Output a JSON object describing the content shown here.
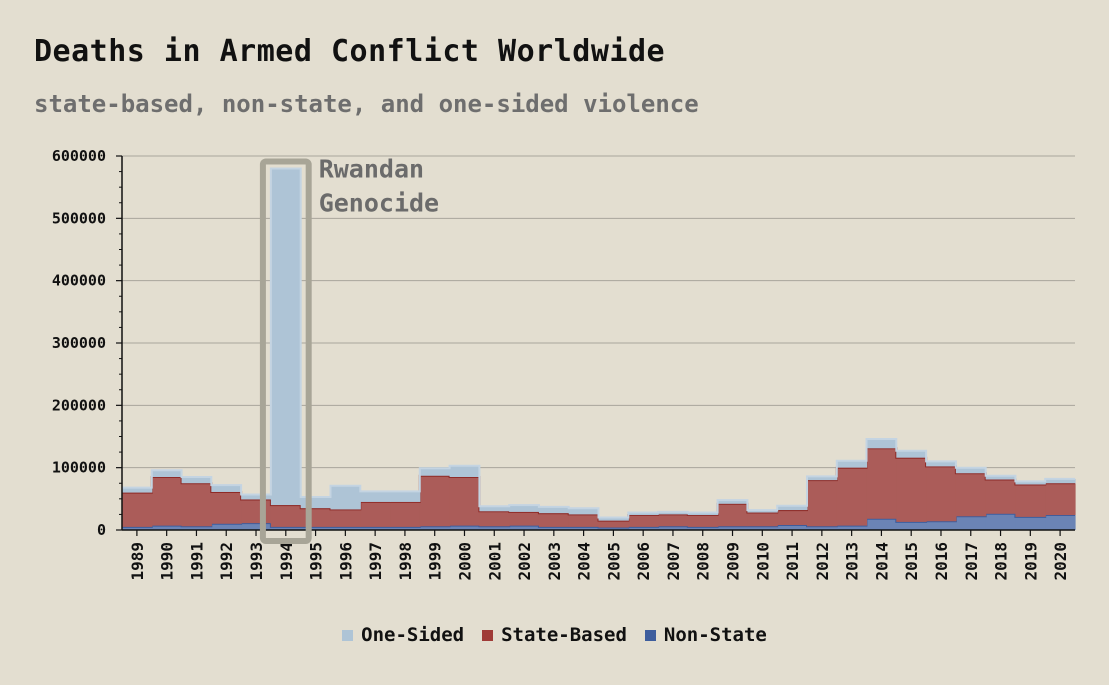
{
  "title": "Deaths in Armed Conflict Worldwide",
  "subtitle": "state-based, non-state, and one-sided violence",
  "colors": {
    "background": "#e3ded0",
    "one_sided": "#aec4d6",
    "one_sided_line": "#c4d4e2",
    "state_based": "#ab5c59",
    "state_based_line": "#8e2a26",
    "non_state": "#6b84b5",
    "non_state_line": "#3d5d9d",
    "grid": "#a9a59b",
    "highlight_box": "#a8a597"
  },
  "chart_data": {
    "type": "area",
    "step": true,
    "stacked": true,
    "title": "Deaths in Armed Conflict Worldwide",
    "subtitle": "state-based, non-state, and one-sided violence",
    "xlabel": "",
    "ylabel": "",
    "ylim": [
      0,
      600000
    ],
    "yticks": [
      "0",
      "100000",
      "200000",
      "300000",
      "400000",
      "500000",
      "600000"
    ],
    "grid": true,
    "legend": "bottom",
    "x": [
      "1989",
      "1990",
      "1991",
      "1992",
      "1993",
      "1994",
      "1995",
      "1996",
      "1997",
      "1998",
      "1999",
      "2000",
      "2001",
      "2002",
      "2003",
      "2004",
      "2005",
      "2006",
      "2007",
      "2008",
      "2009",
      "2010",
      "2011",
      "2012",
      "2013",
      "2014",
      "2015",
      "2016",
      "2017",
      "2018",
      "2019",
      "2020"
    ],
    "series": [
      {
        "name": "Non-State",
        "values": [
          5000,
          7000,
          6000,
          10000,
          11000,
          5000,
          5000,
          5000,
          5000,
          5000,
          6000,
          7000,
          6000,
          7000,
          5000,
          5000,
          4000,
          5000,
          6000,
          5000,
          6000,
          6000,
          8000,
          6000,
          7000,
          18000,
          13000,
          14000,
          22000,
          26000,
          21000,
          24000
        ]
      },
      {
        "name": "State-Based",
        "values": [
          55000,
          78000,
          69000,
          51000,
          38000,
          35000,
          30000,
          28000,
          40000,
          40000,
          81000,
          78000,
          24000,
          22000,
          22000,
          20000,
          11000,
          19000,
          19000,
          19000,
          36000,
          22000,
          24000,
          74000,
          93000,
          113000,
          103000,
          88000,
          69000,
          55000,
          52000,
          51000
        ]
      },
      {
        "name": "One-Sided",
        "values": [
          8000,
          11000,
          10000,
          11000,
          8000,
          540000,
          18000,
          38000,
          17000,
          17000,
          12000,
          18000,
          8000,
          11000,
          10000,
          10000,
          5000,
          4000,
          4000,
          4000,
          6000,
          4000,
          7000,
          6000,
          11000,
          15000,
          11000,
          8000,
          9000,
          6000,
          5000,
          7000
        ]
      }
    ],
    "annotations": [
      {
        "x": "1994",
        "text_lines": [
          "Rwandan",
          "Genocide"
        ]
      }
    ]
  },
  "legend": [
    {
      "label": "One-Sided",
      "color": "#aec4d6"
    },
    {
      "label": "State-Based",
      "color": "#a03b37"
    },
    {
      "label": "Non-State",
      "color": "#3d5d9d"
    }
  ]
}
